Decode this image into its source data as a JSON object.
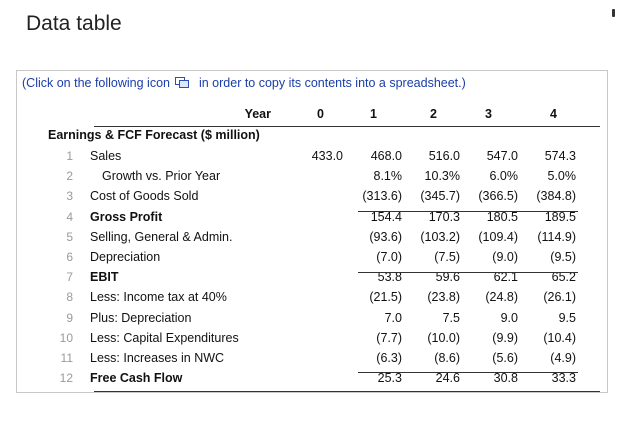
{
  "page": {
    "title": "Data table"
  },
  "instruction": {
    "before": "(Click on the following icon",
    "icon": "copy-to-spreadsheet-icon",
    "after": "in order to copy its contents into a spreadsheet.)"
  },
  "table": {
    "year_label": "Year",
    "years": [
      "0",
      "1",
      "2",
      "3",
      "4"
    ],
    "section_title": "Earnings & FCF Forecast ($ million)",
    "rows": [
      {
        "num": "1",
        "label": "Sales",
        "values": [
          "433.0",
          "468.0",
          "516.0",
          "547.0",
          "574.3"
        ]
      },
      {
        "num": "2",
        "label": "Growth vs. Prior Year",
        "values": [
          "",
          "8.1%",
          "10.3%",
          "6.0%",
          "5.0%"
        ]
      },
      {
        "num": "3",
        "label": "Cost of Goods Sold",
        "values": [
          "",
          "(313.6)",
          "(345.7)",
          "(366.5)",
          "(384.8)"
        ]
      },
      {
        "num": "4",
        "label": "Gross Profit",
        "values": [
          "",
          "154.4",
          "170.3",
          "180.5",
          "189.5"
        ]
      },
      {
        "num": "5",
        "label": "Selling, General & Admin.",
        "values": [
          "",
          "(93.6)",
          "(103.2)",
          "(109.4)",
          "(114.9)"
        ]
      },
      {
        "num": "6",
        "label": "Depreciation",
        "values": [
          "",
          "(7.0)",
          "(7.5)",
          "(9.0)",
          "(9.5)"
        ]
      },
      {
        "num": "7",
        "label": "EBIT",
        "values": [
          "",
          "53.8",
          "59.6",
          "62.1",
          "65.2"
        ]
      },
      {
        "num": "8",
        "label": "Less: Income tax at 40%",
        "values": [
          "",
          "(21.5)",
          "(23.8)",
          "(24.8)",
          "(26.1)"
        ]
      },
      {
        "num": "9",
        "label": "Plus: Depreciation",
        "values": [
          "",
          "7.0",
          "7.5",
          "9.0",
          "9.5"
        ]
      },
      {
        "num": "10",
        "label": "Less: Capital Expenditures",
        "values": [
          "",
          "(7.7)",
          "(10.0)",
          "(9.9)",
          "(10.4)"
        ]
      },
      {
        "num": "11",
        "label": "Less: Increases in NWC",
        "values": [
          "",
          "(6.3)",
          "(8.6)",
          "(5.6)",
          "(4.9)"
        ]
      },
      {
        "num": "12",
        "label": "Free Cash Flow",
        "values": [
          "",
          "25.3",
          "24.6",
          "30.8",
          "33.3"
        ]
      }
    ]
  }
}
